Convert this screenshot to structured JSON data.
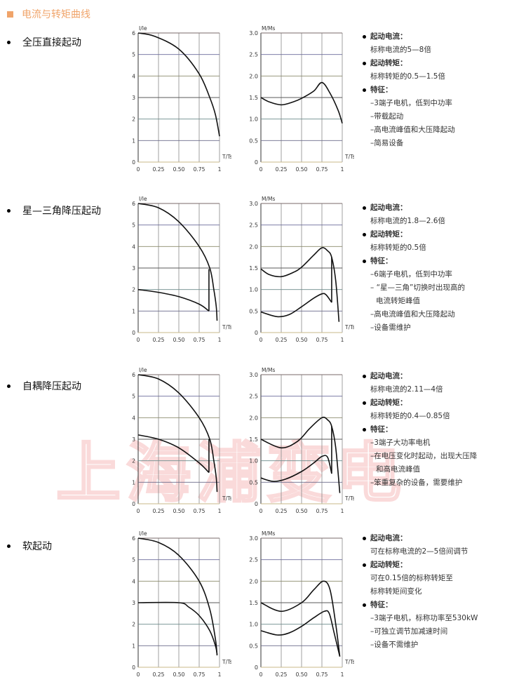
{
  "title": "电流与转矩曲线",
  "watermark": "上海浦变电",
  "colors": {
    "accent": "#f0a46a",
    "curve": "#111111",
    "grid": "#777777"
  },
  "axes": {
    "current_ylabel": "I/Ie",
    "torque_ylabel": "M/Ms",
    "xlabel": "T/Ts",
    "current_yticks": [
      "0",
      "1",
      "2",
      "3",
      "4",
      "5",
      "6"
    ],
    "torque_yticks": [
      "0",
      "0.5",
      "1.0",
      "1.5",
      "2.0",
      "2.5",
      "3.0"
    ],
    "xticks": [
      "0",
      "0.25",
      "0.50",
      "0.75",
      "1"
    ]
  },
  "methods": [
    {
      "name": "全压直接起动",
      "lines": [
        {
          "type": "h",
          "text": "起动电流："
        },
        {
          "type": "t",
          "text": "标称电流的5—8倍"
        },
        {
          "type": "h",
          "text": "起动转矩："
        },
        {
          "type": "t",
          "text": "标称转矩的0.5—1.5倍"
        },
        {
          "type": "h",
          "text": "特征："
        },
        {
          "type": "t",
          "text": "–3端子电机，低到中功率"
        },
        {
          "type": "t",
          "text": "–带载起动"
        },
        {
          "type": "t",
          "text": "–高电流峰值和大压降起动"
        },
        {
          "type": "t",
          "text": "–简易设备"
        }
      ]
    },
    {
      "name": "星—三角降压起动",
      "lines": [
        {
          "type": "h",
          "text": "起动电流："
        },
        {
          "type": "t",
          "text": "标称电流的1.8—2.6倍"
        },
        {
          "type": "h",
          "text": "起动转矩："
        },
        {
          "type": "t",
          "text": "标称转矩的0.5倍"
        },
        {
          "type": "h",
          "text": "特征："
        },
        {
          "type": "t",
          "text": "–6端子电机，低到中功率"
        },
        {
          "type": "t",
          "text": "– “星—三角”切换时出现高的"
        },
        {
          "type": "i",
          "text": "电流转矩峰值"
        },
        {
          "type": "t",
          "text": "–高电流峰值和大压降起动"
        },
        {
          "type": "t",
          "text": "–设备需维护"
        }
      ]
    },
    {
      "name": "自耦降压起动",
      "lines": [
        {
          "type": "h",
          "text": "起动电流："
        },
        {
          "type": "t",
          "text": "标称电流的2.11—4倍"
        },
        {
          "type": "h",
          "text": "起动转矩："
        },
        {
          "type": "t",
          "text": "标称转矩的0.4—0.85倍"
        },
        {
          "type": "h",
          "text": "特征："
        },
        {
          "type": "t",
          "text": "–3端子大功率电机"
        },
        {
          "type": "t",
          "text": "–在电压变化时起动，出现大压降"
        },
        {
          "type": "i",
          "text": "和高电流峰值"
        },
        {
          "type": "t",
          "text": "–笨重复杂的设备，需要维护"
        }
      ]
    },
    {
      "name": "软起动",
      "lines": [
        {
          "type": "h",
          "text": "起动电流："
        },
        {
          "type": "t",
          "text": "可在标称电流的2—5倍间调节"
        },
        {
          "type": "h",
          "text": "起动转矩："
        },
        {
          "type": "t",
          "text": "可在0.15倍的标称转矩至"
        },
        {
          "type": "t",
          "text": "标称转矩间变化"
        },
        {
          "type": "h",
          "text": "特征："
        },
        {
          "type": "t",
          "text": "–3端子电机，标称功率至530kW"
        },
        {
          "type": "t",
          "text": "–可独立调节加减速时间"
        },
        {
          "type": "t",
          "text": "–设备不需维护"
        }
      ]
    }
  ],
  "chart_data": [
    {
      "type": "line",
      "method": "全压直接起动",
      "ylabel": "I/Ie",
      "xlabel": "T/Ts",
      "xlim": [
        0,
        1
      ],
      "ylim": [
        0,
        6
      ],
      "grid": true,
      "series": [
        {
          "values": [
            [
              0,
              6
            ],
            [
              0.2,
              5.85
            ],
            [
              0.5,
              5.25
            ],
            [
              0.75,
              4.1
            ],
            [
              0.88,
              3.0
            ],
            [
              0.95,
              2.2
            ],
            [
              1,
              1.2
            ]
          ]
        }
      ]
    },
    {
      "type": "line",
      "method": "全压直接起动",
      "ylabel": "M/Ms",
      "xlabel": "T/Ts",
      "xlim": [
        0,
        1
      ],
      "ylim": [
        0,
        3
      ],
      "grid": true,
      "series": [
        {
          "values": [
            [
              0,
              1.5
            ],
            [
              0.1,
              1.4
            ],
            [
              0.25,
              1.33
            ],
            [
              0.4,
              1.4
            ],
            [
              0.5,
              1.48
            ],
            [
              0.65,
              1.65
            ],
            [
              0.75,
              1.85
            ],
            [
              0.85,
              1.6
            ],
            [
              0.95,
              1.2
            ],
            [
              1,
              0.9
            ]
          ]
        }
      ]
    },
    {
      "type": "line",
      "method": "星—三角降压起动",
      "ylabel": "I/Ie",
      "xlabel": "T/Ts",
      "xlim": [
        0,
        1
      ],
      "ylim": [
        0,
        6
      ],
      "grid": true,
      "series": [
        {
          "values": [
            [
              0,
              6
            ],
            [
              0.25,
              5.8
            ],
            [
              0.5,
              5.15
            ],
            [
              0.75,
              4.0
            ],
            [
              0.88,
              3.0
            ],
            [
              0.93,
              2.0
            ],
            [
              0.96,
              1.2
            ],
            [
              0.97,
              0.55
            ]
          ]
        },
        {
          "values": [
            [
              0,
              2
            ],
            [
              0.25,
              1.87
            ],
            [
              0.5,
              1.67
            ],
            [
              0.75,
              1.32
            ],
            [
              0.87,
              1.0
            ]
          ]
        },
        {
          "values": [
            [
              0.87,
              1.0
            ],
            [
              0.87,
              2.95
            ]
          ],
          "linear": true
        }
      ]
    },
    {
      "type": "line",
      "method": "星—三角降压起动",
      "ylabel": "M/Ms",
      "xlabel": "T/Ts",
      "xlim": [
        0,
        1
      ],
      "ylim": [
        0,
        3
      ],
      "grid": true,
      "series": [
        {
          "values": [
            [
              0,
              1.48
            ],
            [
              0.1,
              1.35
            ],
            [
              0.25,
              1.3
            ],
            [
              0.4,
              1.4
            ],
            [
              0.5,
              1.52
            ],
            [
              0.65,
              1.8
            ],
            [
              0.75,
              1.97
            ],
            [
              0.82,
              1.9
            ],
            [
              0.87,
              1.75
            ],
            [
              0.92,
              1.2
            ],
            [
              0.96,
              0.25
            ]
          ]
        },
        {
          "values": [
            [
              0,
              0.48
            ],
            [
              0.2,
              0.37
            ],
            [
              0.35,
              0.42
            ],
            [
              0.5,
              0.6
            ],
            [
              0.65,
              0.8
            ],
            [
              0.75,
              0.9
            ],
            [
              0.8,
              0.88
            ],
            [
              0.87,
              0.7
            ]
          ]
        },
        {
          "values": [
            [
              0.87,
              0.7
            ],
            [
              0.87,
              1.75
            ]
          ],
          "linear": true
        }
      ]
    },
    {
      "type": "line",
      "method": "自耦降压起动",
      "ylabel": "I/Ie",
      "xlabel": "T/Ts",
      "xlim": [
        0,
        1
      ],
      "ylim": [
        0,
        6
      ],
      "grid": true,
      "series": [
        {
          "values": [
            [
              0,
              6
            ],
            [
              0.25,
              5.8
            ],
            [
              0.5,
              5.15
            ],
            [
              0.75,
              4.0
            ],
            [
              0.88,
              3.0
            ],
            [
              0.93,
              2.0
            ],
            [
              0.96,
              1.2
            ],
            [
              0.97,
              0.55
            ]
          ]
        },
        {
          "values": [
            [
              0,
              3.2
            ],
            [
              0.25,
              3.0
            ],
            [
              0.5,
              2.6
            ],
            [
              0.75,
              1.9
            ],
            [
              0.87,
              1.45
            ]
          ]
        },
        {
          "values": [
            [
              0.87,
              1.45
            ],
            [
              0.87,
              3.0
            ]
          ],
          "linear": true
        }
      ]
    },
    {
      "type": "line",
      "method": "自耦降压起动",
      "ylabel": "M/Ms",
      "xlabel": "T/Ts",
      "xlim": [
        0,
        1
      ],
      "ylim": [
        0,
        3
      ],
      "grid": true,
      "series": [
        {
          "values": [
            [
              0,
              1.5
            ],
            [
              0.25,
              1.3
            ],
            [
              0.45,
              1.45
            ],
            [
              0.6,
              1.75
            ],
            [
              0.75,
              2.0
            ],
            [
              0.82,
              1.95
            ],
            [
              0.87,
              1.8
            ],
            [
              0.92,
              1.3
            ],
            [
              0.97,
              0.25
            ]
          ]
        },
        {
          "values": [
            [
              0,
              0.6
            ],
            [
              0.15,
              0.52
            ],
            [
              0.3,
              0.57
            ],
            [
              0.5,
              0.75
            ],
            [
              0.65,
              0.95
            ],
            [
              0.75,
              1.1
            ],
            [
              0.82,
              1.08
            ],
            [
              0.87,
              0.7
            ]
          ]
        },
        {
          "values": [
            [
              0.87,
              0.7
            ],
            [
              0.87,
              1.8
            ]
          ],
          "linear": true
        }
      ]
    },
    {
      "type": "line",
      "method": "软起动",
      "ylabel": "I/Ie",
      "xlabel": "T/Ts",
      "xlim": [
        0,
        1
      ],
      "ylim": [
        0,
        6
      ],
      "grid": true,
      "series": [
        {
          "values": [
            [
              0,
              6
            ],
            [
              0.25,
              5.8
            ],
            [
              0.5,
              5.2
            ],
            [
              0.75,
              4.0
            ],
            [
              0.88,
              2.7
            ],
            [
              0.95,
              1.3
            ],
            [
              0.97,
              0.55
            ]
          ]
        },
        {
          "values": [
            [
              0,
              3
            ],
            [
              0.5,
              3
            ],
            [
              0.62,
              2.8
            ],
            [
              0.75,
              2.4
            ],
            [
              0.88,
              1.7
            ],
            [
              0.95,
              1.0
            ],
            [
              0.97,
              0.6
            ]
          ]
        }
      ]
    },
    {
      "type": "line",
      "method": "软起动",
      "ylabel": "M/Ms",
      "xlabel": "T/Ts",
      "xlim": [
        0,
        1
      ],
      "ylim": [
        0,
        3
      ],
      "grid": true,
      "series": [
        {
          "values": [
            [
              0,
              1.5
            ],
            [
              0.25,
              1.3
            ],
            [
              0.5,
              1.5
            ],
            [
              0.65,
              1.8
            ],
            [
              0.77,
              2.0
            ],
            [
              0.85,
              1.8
            ],
            [
              0.92,
              1.0
            ],
            [
              0.97,
              0.25
            ]
          ]
        },
        {
          "values": [
            [
              0,
              0.85
            ],
            [
              0.2,
              0.75
            ],
            [
              0.35,
              0.8
            ],
            [
              0.5,
              0.95
            ],
            [
              0.65,
              1.15
            ],
            [
              0.78,
              1.3
            ],
            [
              0.84,
              1.25
            ],
            [
              0.9,
              0.8
            ],
            [
              0.97,
              0.25
            ]
          ]
        }
      ]
    }
  ]
}
